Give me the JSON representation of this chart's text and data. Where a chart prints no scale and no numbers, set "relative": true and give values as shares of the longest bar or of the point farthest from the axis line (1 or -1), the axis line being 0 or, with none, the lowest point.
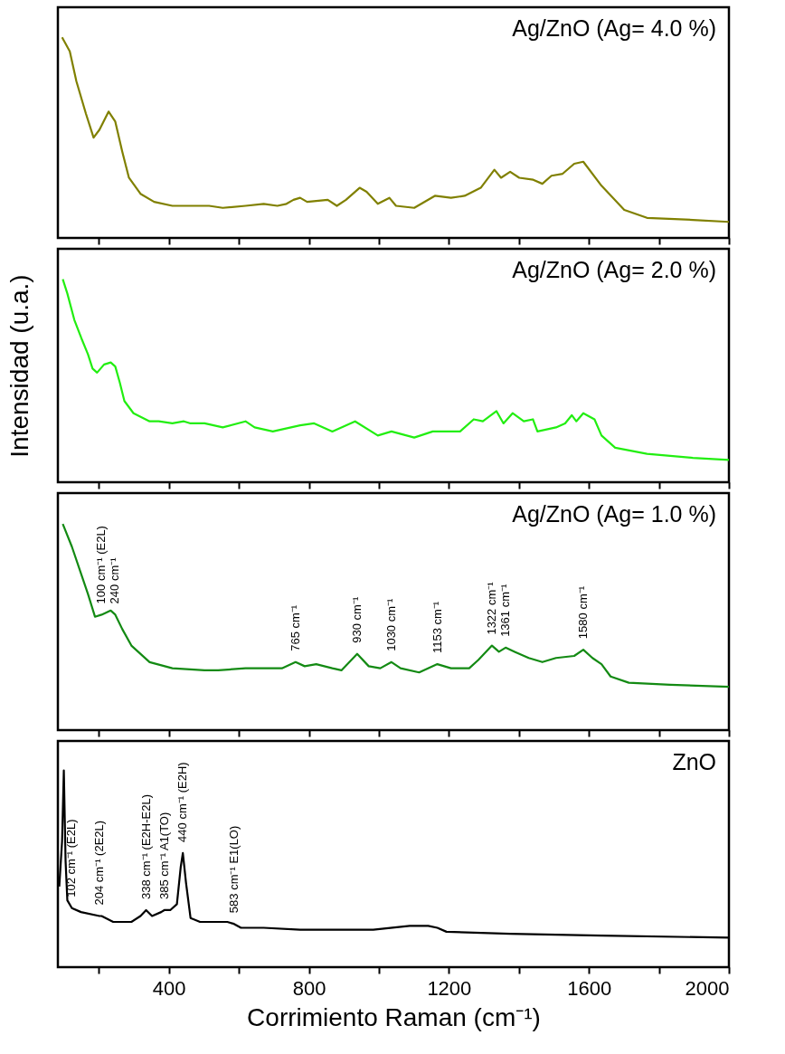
{
  "chart_data": [
    {
      "type": "line",
      "title": "Ag/ZnO (Ag= 4.0 %)",
      "relative": true,
      "tick_labels": false,
      "xlim": [
        83,
        2000
      ],
      "xticks": [
        {
          "value": 200,
          "label": null
        },
        400,
        {
          "value": 600,
          "label": null
        },
        800,
        {
          "value": 1000,
          "label": null
        },
        1200,
        {
          "value": 1400,
          "label": null
        },
        1600,
        {
          "value": 1800,
          "label": null
        },
        2000
      ],
      "x": [
        95,
        117,
        136,
        163,
        185,
        202,
        228,
        247,
        267,
        286,
        319,
        358,
        410,
        462,
        515,
        554,
        619,
        671,
        710,
        736,
        756,
        775,
        795,
        854,
        880,
        906,
        945,
        965,
        997,
        1030,
        1049,
        1101,
        1160,
        1206,
        1245,
        1291,
        1330,
        1349,
        1375,
        1401,
        1441,
        1467,
        1493,
        1525,
        1558,
        1584,
        1636,
        1701,
        1766,
        1897,
        2000
      ],
      "series": [
        {
          "color": "#808000",
          "values": [
            1.0,
            0.93,
            0.78,
            0.62,
            0.5,
            0.54,
            0.63,
            0.58,
            0.43,
            0.3,
            0.22,
            0.18,
            0.16,
            0.16,
            0.16,
            0.15,
            0.16,
            0.17,
            0.16,
            0.17,
            0.19,
            0.2,
            0.18,
            0.19,
            0.16,
            0.19,
            0.25,
            0.23,
            0.17,
            0.2,
            0.16,
            0.15,
            0.21,
            0.2,
            0.21,
            0.25,
            0.34,
            0.3,
            0.33,
            0.3,
            0.29,
            0.27,
            0.31,
            0.32,
            0.37,
            0.38,
            0.26,
            0.14,
            0.1,
            0.09,
            0.08
          ]
        }
      ]
    },
    {
      "type": "line",
      "title": "Ag/ZnO (Ag= 2.0 %)",
      "ylabel": "Intensidad (u.a.)",
      "relative": true,
      "tick_labels": false,
      "xlim": [
        83,
        2000
      ],
      "xticks": [
        {
          "value": 200,
          "label": null
        },
        400,
        {
          "value": 600,
          "label": null
        },
        800,
        {
          "value": 1000,
          "label": null
        },
        1200,
        {
          "value": 1400,
          "label": null
        },
        1600,
        {
          "value": 1800,
          "label": null
        },
        2000
      ],
      "x": [
        97,
        110,
        130,
        150,
        169,
        182,
        195,
        215,
        234,
        247,
        260,
        273,
        299,
        345,
        371,
        410,
        443,
        462,
        502,
        554,
        619,
        645,
        697,
        775,
        815,
        867,
        932,
        997,
        1036,
        1101,
        1154,
        1193,
        1232,
        1271,
        1297,
        1336,
        1356,
        1382,
        1414,
        1440,
        1453,
        1506,
        1532,
        1551,
        1564,
        1584,
        1616,
        1636,
        1675,
        1766,
        1897,
        2000
      ],
      "series": [
        {
          "color": "#22ee11",
          "values": [
            1.0,
            0.93,
            0.8,
            0.71,
            0.63,
            0.56,
            0.54,
            0.58,
            0.59,
            0.57,
            0.49,
            0.4,
            0.34,
            0.3,
            0.3,
            0.29,
            0.3,
            0.29,
            0.29,
            0.27,
            0.3,
            0.27,
            0.25,
            0.28,
            0.29,
            0.25,
            0.3,
            0.23,
            0.25,
            0.22,
            0.25,
            0.25,
            0.25,
            0.31,
            0.3,
            0.35,
            0.29,
            0.34,
            0.3,
            0.31,
            0.25,
            0.27,
            0.29,
            0.33,
            0.3,
            0.34,
            0.31,
            0.23,
            0.17,
            0.14,
            0.12,
            0.11
          ]
        }
      ]
    },
    {
      "type": "line",
      "title": "Ag/ZnO (Ag= 1.0 %)",
      "relative": true,
      "tick_labels": false,
      "xlim": [
        83,
        2000
      ],
      "xticks": [
        {
          "value": 200,
          "label": null
        },
        400,
        {
          "value": 600,
          "label": null
        },
        800,
        {
          "value": 1000,
          "label": null
        },
        1200,
        {
          "value": 1400,
          "label": null
        },
        1600,
        {
          "value": 1800,
          "label": null
        },
        2000
      ],
      "x": [
        97,
        123,
        149,
        169,
        189,
        208,
        234,
        247,
        267,
        293,
        345,
        410,
        502,
        541,
        619,
        723,
        762,
        788,
        821,
        867,
        893,
        938,
        971,
        1004,
        1036,
        1062,
        1115,
        1167,
        1206,
        1258,
        1284,
        1323,
        1343,
        1362,
        1388,
        1428,
        1467,
        1506,
        1558,
        1584,
        1610,
        1636,
        1662,
        1714,
        1832,
        2000
      ],
      "series": [
        {
          "color": "#138a13",
          "values": [
            1.0,
            0.89,
            0.76,
            0.66,
            0.55,
            0.56,
            0.58,
            0.56,
            0.49,
            0.41,
            0.33,
            0.3,
            0.29,
            0.29,
            0.3,
            0.3,
            0.33,
            0.31,
            0.32,
            0.3,
            0.29,
            0.37,
            0.31,
            0.3,
            0.33,
            0.3,
            0.28,
            0.32,
            0.3,
            0.3,
            0.34,
            0.41,
            0.38,
            0.4,
            0.38,
            0.35,
            0.33,
            0.35,
            0.36,
            0.39,
            0.35,
            0.32,
            0.26,
            0.23,
            0.22,
            0.21
          ]
        }
      ],
      "annotations": [
        {
          "text": "100 cm⁻¹ (E2L)",
          "x": 208,
          "y": 0.56
        },
        {
          "text": "240 cm⁻¹",
          "x": 247,
          "y": 0.56
        },
        {
          "text": "765 cm⁻¹",
          "x": 762,
          "y": 0.33
        },
        {
          "text": "930 cm⁻¹",
          "x": 938,
          "y": 0.37
        },
        {
          "text": "1030 cm⁻¹",
          "x": 1036,
          "y": 0.33
        },
        {
          "text": "1153 cm⁻¹",
          "x": 1167,
          "y": 0.32
        },
        {
          "text": "1322 cm⁻¹",
          "x": 1323,
          "y": 0.41
        },
        {
          "text": "1361 cm⁻¹",
          "x": 1362,
          "y": 0.4
        },
        {
          "text": "1580 cm⁻¹",
          "x": 1584,
          "y": 0.39
        }
      ]
    },
    {
      "type": "line",
      "title": "ZnO",
      "xlabel": "Corrimiento Raman (cm⁻¹)",
      "relative": true,
      "tick_labels": "x",
      "xlim": [
        83,
        2000
      ],
      "xticks": [
        {
          "value": 200,
          "label": null
        },
        400,
        {
          "value": 600,
          "label": null
        },
        800,
        {
          "value": 1000,
          "label": null
        },
        1200,
        {
          "value": 1400,
          "label": null
        },
        1600,
        {
          "value": 1800,
          "label": null
        },
        2000
      ],
      "x": [
        87,
        95,
        100,
        105,
        110,
        123,
        149,
        202,
        208,
        241,
        293,
        319,
        335,
        352,
        378,
        387,
        404,
        423,
        434,
        440,
        449,
        462,
        489,
        567,
        586,
        606,
        671,
        775,
        984,
        1088,
        1141,
        1167,
        1193,
        1375,
        1636,
        2000
      ],
      "series": [
        {
          "color": "#000000",
          "values": [
            0.41,
            0.64,
            1.0,
            0.54,
            0.34,
            0.3,
            0.28,
            0.26,
            0.26,
            0.23,
            0.23,
            0.26,
            0.29,
            0.26,
            0.28,
            0.29,
            0.29,
            0.32,
            0.51,
            0.58,
            0.43,
            0.25,
            0.23,
            0.23,
            0.22,
            0.2,
            0.2,
            0.19,
            0.19,
            0.21,
            0.21,
            0.2,
            0.18,
            0.17,
            0.16,
            0.15
          ]
        }
      ],
      "annotations": [
        {
          "text": "102 cm⁻¹ (E2L)",
          "x": 123,
          "y": 0.3
        },
        {
          "text": "204 cm⁻¹ (2E2L)",
          "x": 202,
          "y": 0.26
        },
        {
          "text": "338 cm⁻¹ (E2H-E2L)",
          "x": 335,
          "y": 0.29
        },
        {
          "text": "385 cm⁻¹ A1(TO)",
          "x": 387,
          "y": 0.29
        },
        {
          "text": "440 cm⁻¹ (E2H)",
          "x": 440,
          "y": 0.58
        },
        {
          "text": "583 cm⁻¹ E1(LO)",
          "x": 586,
          "y": 0.22
        }
      ]
    }
  ]
}
